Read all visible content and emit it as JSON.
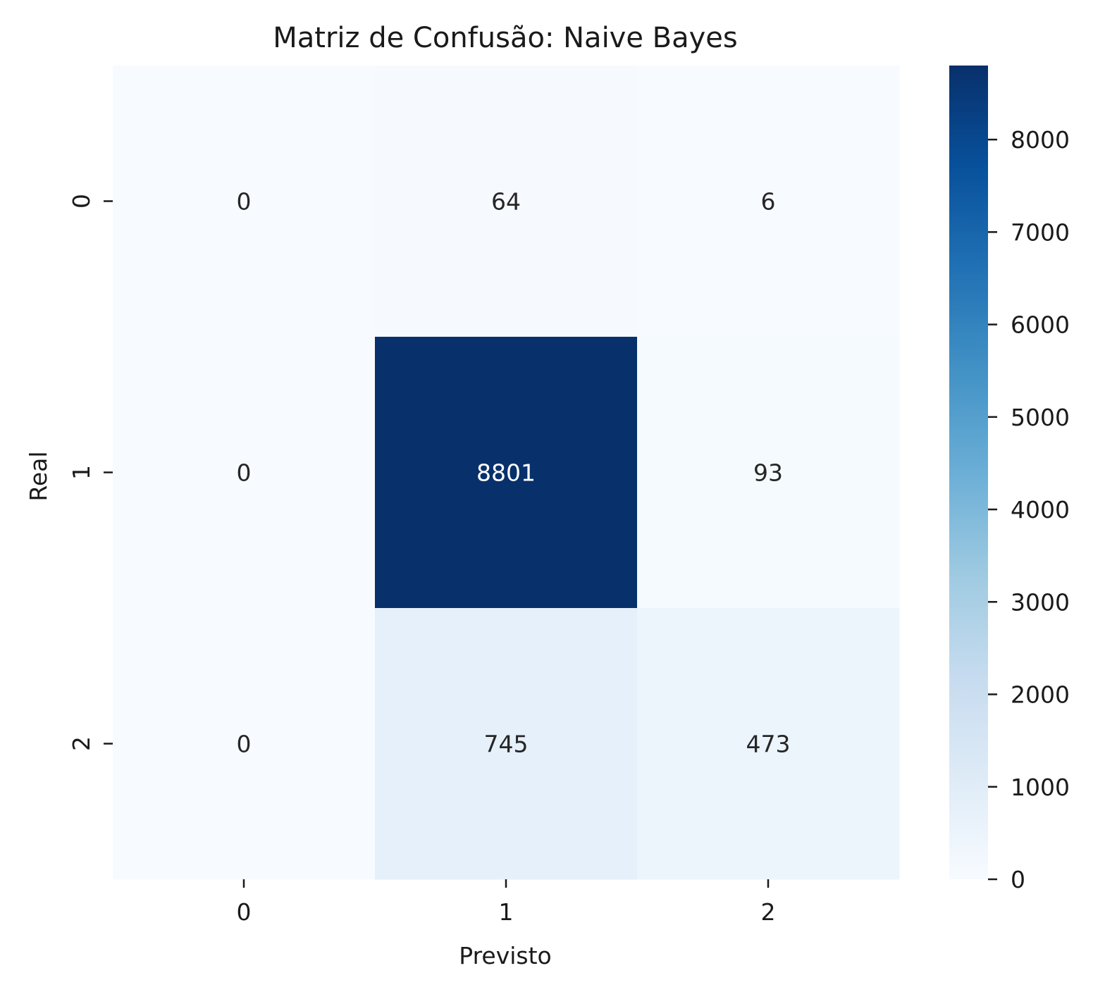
{
  "chart_data": {
    "type": "heatmap",
    "title": "Matriz de Confusão: Naive Bayes",
    "xlabel": "Previsto",
    "ylabel": "Real",
    "x_categories": [
      "0",
      "1",
      "2"
    ],
    "y_categories": [
      "0",
      "1",
      "2"
    ],
    "values": [
      [
        0,
        64,
        6
      ],
      [
        0,
        8801,
        93
      ],
      [
        0,
        745,
        473
      ]
    ],
    "colorbar": {
      "colormap": "Blues",
      "range": [
        0,
        8801
      ],
      "ticks": [
        0,
        1000,
        2000,
        3000,
        4000,
        5000,
        6000,
        7000,
        8000
      ],
      "tick_labels": [
        "0",
        "1000",
        "2000",
        "3000",
        "4000",
        "5000",
        "6000",
        "7000",
        "8000"
      ]
    }
  }
}
